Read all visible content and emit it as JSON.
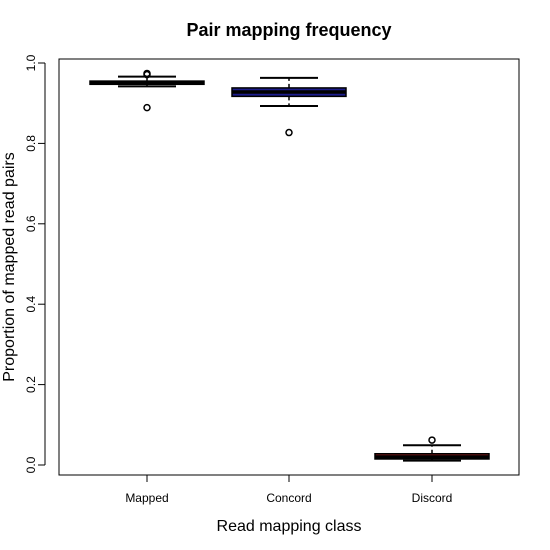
{
  "chart_data": {
    "type": "boxplot",
    "title": "Pair mapping frequency",
    "xlabel": "Read mapping class",
    "ylabel": "Proportion of mapped read pairs",
    "categories": [
      "Mapped",
      "Concord",
      "Discord"
    ],
    "ylim": [
      0.0,
      1.0
    ],
    "yticks": [
      {
        "value": 0.0,
        "label": "0.0"
      },
      {
        "value": 0.2,
        "label": "0.2"
      },
      {
        "value": 0.4,
        "label": "0.4"
      },
      {
        "value": 0.6,
        "label": "0.6"
      },
      {
        "value": 0.8,
        "label": "0.8"
      },
      {
        "value": 1.0,
        "label": "1.0"
      }
    ],
    "boxes": [
      {
        "category": "Mapped",
        "color": "#000000",
        "whisker_low": 0.942,
        "q1": 0.947,
        "median": 0.952,
        "q3": 0.955,
        "whisker_high": 0.966,
        "outliers": [
          0.974,
          0.971,
          0.889
        ]
      },
      {
        "category": "Concord",
        "color": "#1c1c8c",
        "whisker_low": 0.893,
        "q1": 0.917,
        "median": 0.928,
        "q3": 0.938,
        "whisker_high": 0.963,
        "outliers": [
          0.827
        ]
      },
      {
        "category": "Discord",
        "color": "#8b1a1a",
        "whisker_low": 0.011,
        "q1": 0.015,
        "median": 0.02,
        "q3": 0.028,
        "whisker_high": 0.049,
        "outliers": [
          0.062
        ]
      }
    ],
    "grid": false,
    "legend": "none"
  }
}
